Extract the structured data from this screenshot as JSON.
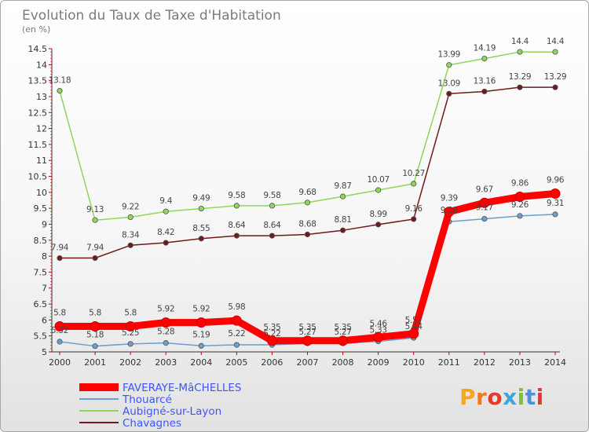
{
  "chart_data": {
    "type": "line",
    "title": "Evolution du Taux de Taxe d'Habitation",
    "ylabel": "(en %)",
    "xlabel": "",
    "ylim": [
      5,
      14.5
    ],
    "ytick_step": 0.5,
    "grid": false,
    "legend_position": "bottom-left",
    "x": [
      "2000",
      "2001",
      "2002",
      "2003",
      "2004",
      "2005",
      "2006",
      "2007",
      "2008",
      "2009",
      "2010",
      "2011",
      "2012",
      "2013",
      "2014"
    ],
    "series": [
      {
        "name": "FAVERAYE-MâCHELLES",
        "color": "#ff0000",
        "legend_text_color": "#3d55ff",
        "bold": true,
        "values": [
          5.8,
          5.8,
          5.8,
          5.92,
          5.92,
          5.98,
          5.35,
          5.35,
          5.35,
          5.46,
          5.57,
          9.39,
          9.67,
          9.86,
          9.96
        ]
      },
      {
        "name": "Thouarcé",
        "color": "#6a9fcf",
        "legend_text_color": "#3d55ff",
        "values": [
          5.32,
          5.18,
          5.25,
          5.28,
          5.19,
          5.22,
          5.22,
          5.27,
          5.27,
          5.33,
          5.44,
          9.08,
          9.17,
          9.26,
          9.31
        ]
      },
      {
        "name": "Aubigné-sur-Layon",
        "color": "#90d65a",
        "legend_text_color": "#3d55ff",
        "values": [
          13.18,
          9.13,
          9.22,
          9.4,
          9.49,
          9.58,
          9.58,
          9.68,
          9.87,
          10.07,
          10.27,
          13.99,
          14.19,
          14.4,
          14.4
        ]
      },
      {
        "name": "Chavagnes",
        "color": "#6e1a1a",
        "legend_text_color": "#3d55ff",
        "values": [
          7.94,
          7.94,
          8.34,
          8.42,
          8.55,
          8.64,
          8.64,
          8.68,
          8.81,
          8.99,
          9.16,
          13.09,
          13.16,
          13.29,
          13.29
        ]
      }
    ],
    "data_labels": {
      "FAVERAYE-MâCHELLES": [
        "5.8",
        "5.8",
        "5.8",
        "5.92",
        "5.92",
        "5.98",
        "5.35",
        "5.35",
        "5.35",
        "5.46",
        "5.57",
        "9.39",
        "9.67",
        "9.86",
        "9.96"
      ],
      "Thouarcé": [
        "5.32",
        "5.18",
        "5.25",
        "5.28",
        "5.19",
        "5.22",
        "5.22",
        "5.27",
        "5.27",
        "5.33",
        "5.44",
        "9.08",
        "9.17",
        "9.26",
        "9.31"
      ],
      "Aubigné-sur-Layon": [
        "13.18",
        "9.13",
        "9.22",
        "9.4",
        "9.49",
        "9.58",
        "9.58",
        "9.68",
        "9.87",
        "10.07",
        "10.27",
        "13.99",
        "14.19",
        "14.4",
        "14.4"
      ],
      "Chavagnes": [
        "7.94",
        "7.94",
        "8.34",
        "8.42",
        "8.55",
        "8.64",
        "8.64",
        "8.68",
        "8.81",
        "8.99",
        "9.16",
        "13.09",
        "13.16",
        "13.29",
        "13.29"
      ]
    }
  },
  "brand": {
    "logo_text": "Proxiti",
    "letter_colors": [
      "#f5a623",
      "#f07a1a",
      "#e5392a",
      "#3aa6dd",
      "#7fbf3a",
      "#4f8fd6",
      "#e5392a"
    ]
  }
}
